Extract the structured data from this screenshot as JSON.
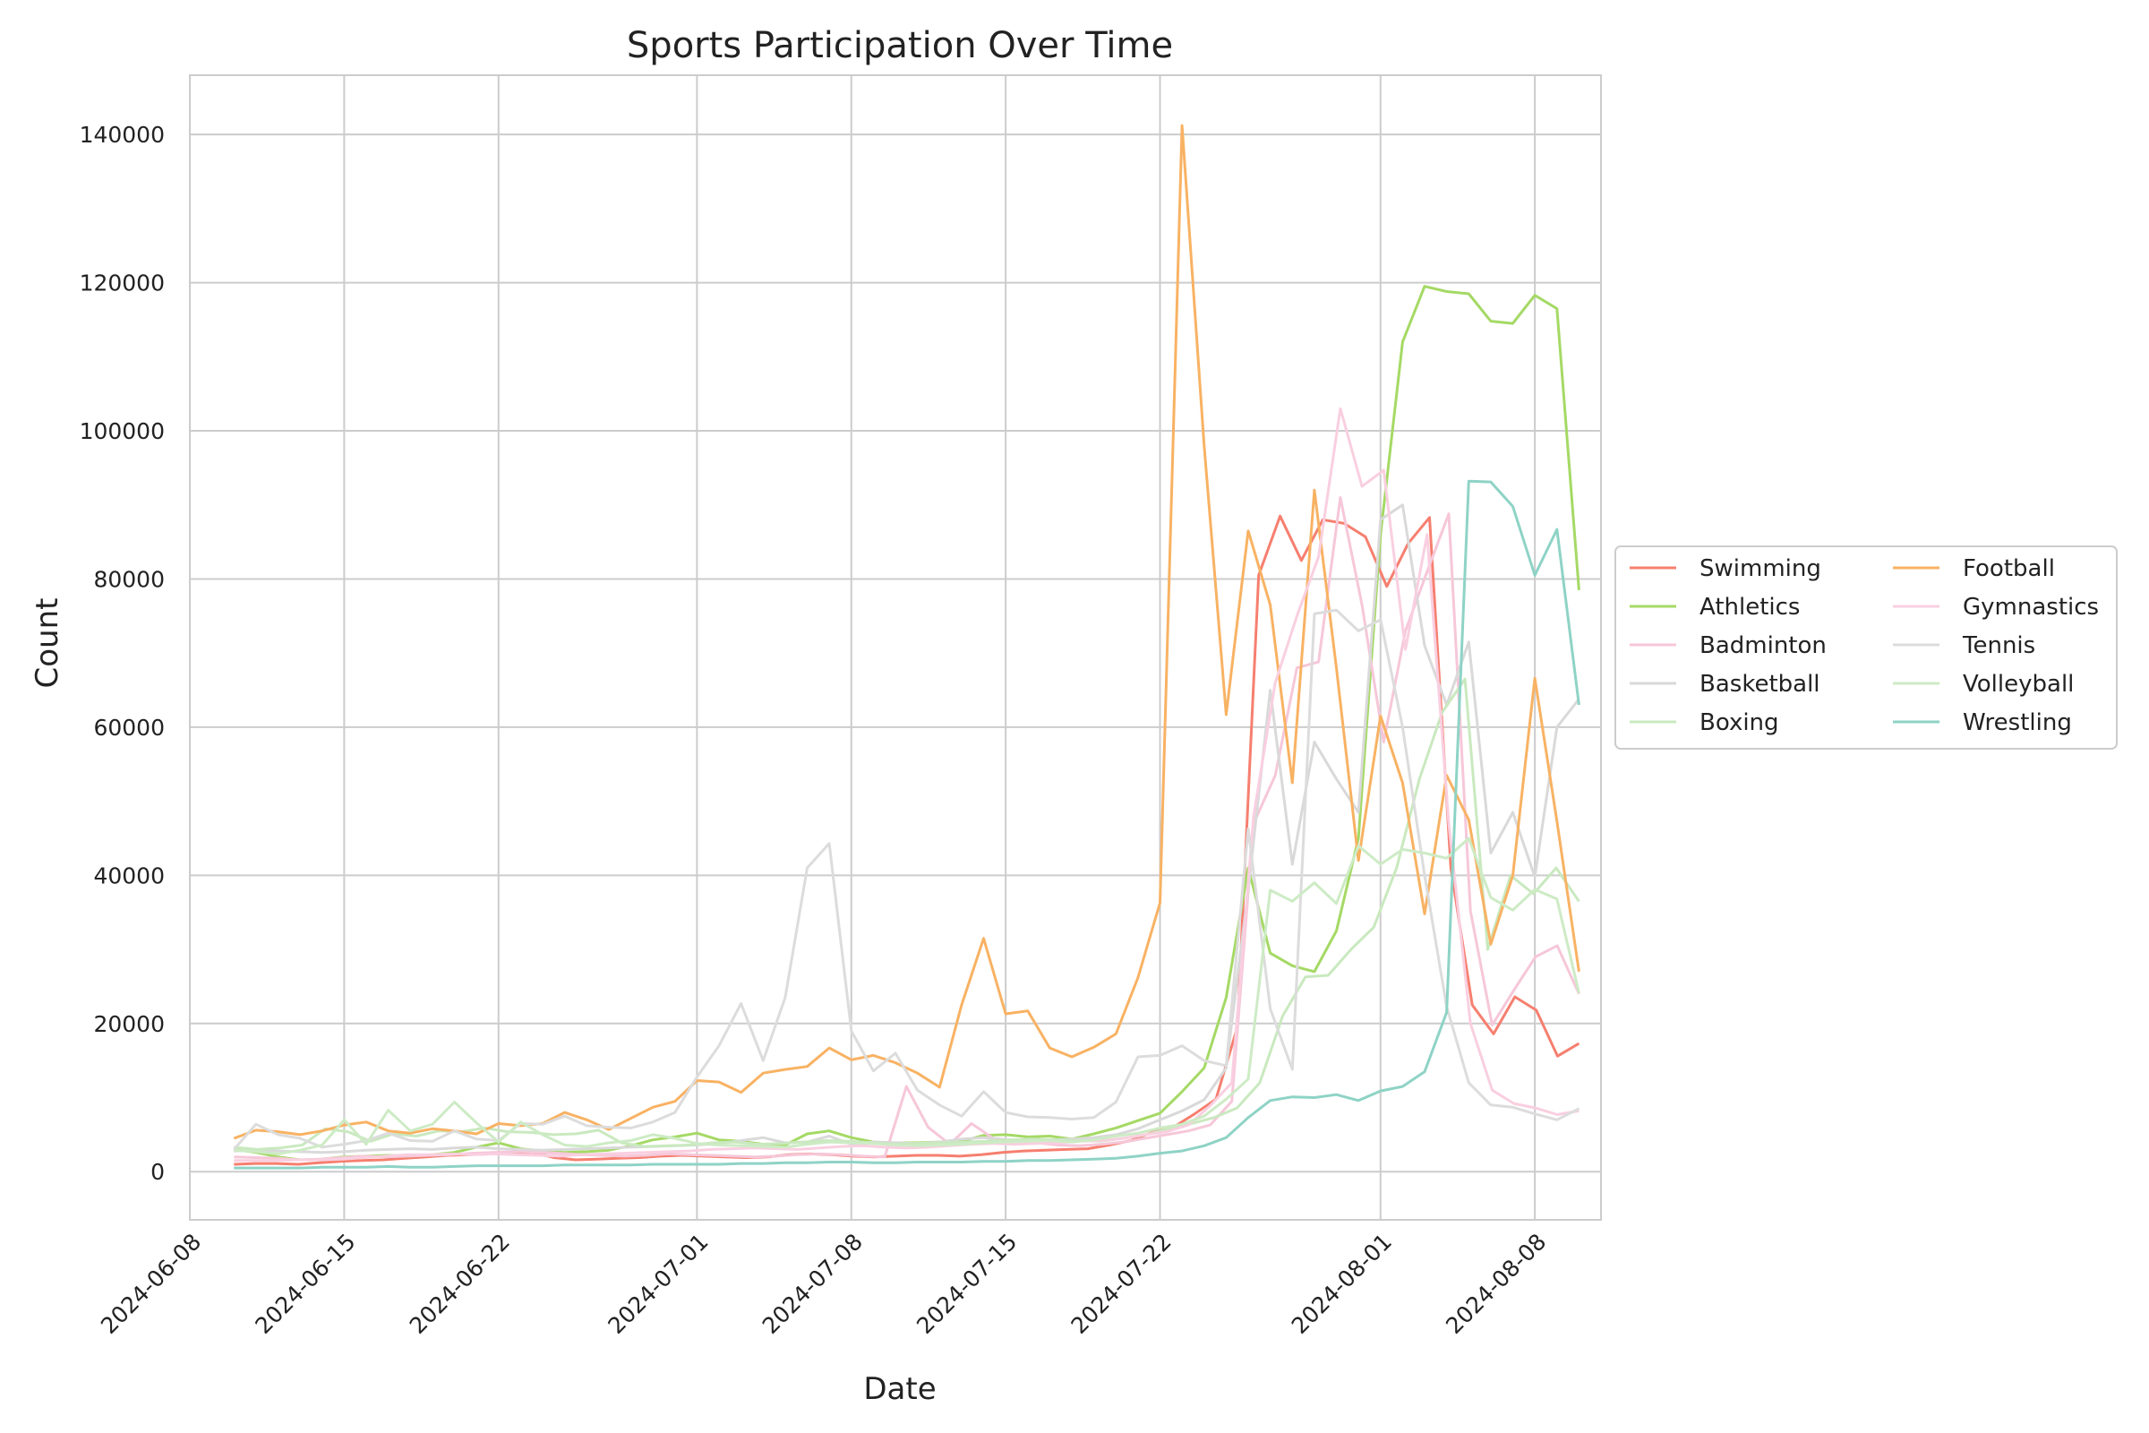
{
  "chart_data": {
    "type": "line",
    "title": "Sports Participation Over Time",
    "xlabel": "Date",
    "ylabel": "Count",
    "x_start": "2024-06-10",
    "x_end": "2024-08-10",
    "xlim": [
      "2024-06-08",
      "2024-08-11"
    ],
    "ylim": [
      -6500,
      148000
    ],
    "y_ticks": [
      0,
      20000,
      40000,
      60000,
      80000,
      100000,
      120000,
      140000
    ],
    "x_ticks": [
      "2024-06-08",
      "2024-06-15",
      "2024-06-22",
      "2024-07-01",
      "2024-07-08",
      "2024-07-15",
      "2024-07-22",
      "2024-08-01",
      "2024-08-08"
    ],
    "grid": true,
    "legend_position": "right",
    "series": [
      {
        "name": "Swimming",
        "color": "#f67f6f",
        "values": [
          1000,
          1100,
          1100,
          1000,
          1200,
          1400,
          1500,
          1600,
          1800,
          2000,
          2200,
          2300,
          2400,
          2500,
          2600,
          1900,
          1600,
          1700,
          1800,
          1900,
          2100,
          2200,
          2100,
          2000,
          1900,
          2000,
          2300,
          2400,
          2300,
          2100,
          2000,
          2100,
          2200,
          2200,
          2100,
          2300,
          2600,
          2800,
          2900,
          3000,
          3100,
          3600,
          4200,
          5300,
          6000,
          7800,
          9800,
          19500,
          80500,
          88500,
          82500,
          88000,
          87500,
          85700,
          79000,
          84800,
          88300,
          41000,
          22500,
          18600,
          23600,
          21800,
          15600,
          17300
        ]
      },
      {
        "name": "Athletics",
        "color": "#a5d965",
        "values": [
          3000,
          2600,
          2000,
          1600,
          1700,
          2000,
          2100,
          2200,
          2100,
          2300,
          2600,
          3300,
          3900,
          3100,
          2800,
          2600,
          2700,
          2900,
          3500,
          4300,
          4700,
          5200,
          4300,
          4100,
          3700,
          3600,
          5100,
          5500,
          4600,
          4000,
          3900,
          3900,
          4000,
          4100,
          4900,
          5000,
          4700,
          4800,
          4400,
          5100,
          5900,
          6900,
          7900,
          10800,
          14000,
          23500,
          41000,
          29500,
          27800,
          27000,
          32500,
          45000,
          86000,
          112000,
          119500,
          118800,
          118500,
          114800,
          114500,
          118300,
          116500,
          78500
        ]
      },
      {
        "name": "Badminton",
        "color": "#f6c7d9",
        "values": [
          2000,
          1900,
          1800,
          1600,
          1700,
          1900,
          2100,
          2000,
          2100,
          2200,
          2300,
          2500,
          2600,
          2700,
          2600,
          2500,
          2300,
          2200,
          2100,
          2200,
          2400,
          2300,
          2200,
          2100,
          2000,
          2100,
          2300,
          2400,
          2300,
          2100,
          2000,
          11500,
          6000,
          3700,
          6500,
          4500,
          4200,
          3900,
          3600,
          3500,
          3700,
          4000,
          4500,
          5000,
          5500,
          6300,
          9500,
          47000,
          53500,
          68000,
          68800,
          91000,
          76500,
          58000,
          73000,
          81000,
          88800,
          35200,
          19800,
          24500,
          29000,
          30500,
          24000
        ]
      },
      {
        "name": "Basketball",
        "color": "#d9d9d9",
        "values": [
          2800,
          2900,
          2800,
          2700,
          2600,
          2700,
          2900,
          3000,
          3100,
          3000,
          3200,
          3300,
          3100,
          3000,
          2900,
          3000,
          3100,
          3200,
          3300,
          3400,
          3500,
          3600,
          3800,
          4200,
          4600,
          3900,
          4000,
          4800,
          3700,
          4000,
          3900,
          3800,
          4000,
          4400,
          4600,
          4300,
          4200,
          4300,
          4400,
          4600,
          5000,
          5800,
          7000,
          8200,
          9700,
          14000,
          38000,
          65000,
          41500,
          58000,
          53000,
          48500,
          88000,
          90000,
          71000,
          63000,
          71500,
          43000,
          48500,
          39800,
          60000,
          63800
        ]
      },
      {
        "name": "Boxing",
        "color": "#c9e9bf",
        "values": [
          3300,
          3000,
          3200,
          3600,
          5800,
          5400,
          4100,
          5100,
          4800,
          5500,
          5400,
          5900,
          5400,
          5300,
          5000,
          5100,
          5600,
          3900,
          3400,
          3500,
          3600,
          3900,
          4000,
          3700,
          3800,
          4000,
          4200,
          4100,
          3900,
          3700,
          3800,
          3900,
          4000,
          4100,
          4300,
          4400,
          4300,
          4200,
          4100,
          4500,
          5000,
          5800,
          6500,
          7300,
          8600,
          12000,
          21000,
          26300,
          26500,
          30000,
          33000,
          41000,
          53000,
          62000,
          66500,
          30000,
          40000,
          37500,
          41000,
          36500
        ]
      },
      {
        "name": "Football",
        "color": "#f8b263",
        "values": [
          4500,
          5600,
          5400,
          5000,
          5500,
          6300,
          6700,
          5500,
          5200,
          5800,
          5500,
          5100,
          6500,
          6200,
          6500,
          8000,
          7000,
          5700,
          7200,
          8700,
          9500,
          12300,
          12100,
          10700,
          13300,
          13800,
          14200,
          16700,
          15100,
          15700,
          14700,
          13300,
          11400,
          22500,
          31500,
          21300,
          21700,
          16700,
          15500,
          16800,
          18600,
          26200,
          36300,
          141200,
          98000,
          61700,
          86500,
          76500,
          52500,
          92000,
          68000,
          42000,
          61500,
          52500,
          34800,
          53500,
          47500,
          30700,
          40000,
          66600,
          47300,
          27000
        ]
      },
      {
        "name": "Gymnastics",
        "color": "#f9cfe0",
        "values": [
          1500,
          1500,
          1500,
          1600,
          1600,
          1700,
          1900,
          2100,
          2300,
          2300,
          2400,
          2300,
          2400,
          2300,
          2200,
          2100,
          2300,
          2400,
          2500,
          2600,
          2700,
          2800,
          3000,
          3100,
          3200,
          3100,
          3000,
          3200,
          3400,
          3500,
          3300,
          3200,
          3300,
          3500,
          3700,
          3800,
          3700,
          3800,
          3900,
          4100,
          4200,
          4500,
          5000,
          5400,
          6300,
          8900,
          12000,
          48000,
          66000,
          75000,
          83000,
          103000,
          92500,
          94700,
          70500,
          86000,
          47000,
          20000,
          11000,
          9200,
          8600,
          7700,
          8200
        ]
      },
      {
        "name": "Tennis",
        "color": "#dcdcdc",
        "values": [
          3000,
          6400,
          5000,
          4500,
          3300,
          3700,
          4200,
          5200,
          4200,
          4100,
          5500,
          4400,
          4200,
          6500,
          6400,
          7500,
          6200,
          6000,
          5900,
          6700,
          8000,
          12800,
          17000,
          22700,
          15000,
          23500,
          41000,
          44300,
          19000,
          13600,
          16000,
          11000,
          9000,
          7500,
          10800,
          8000,
          7400,
          7300,
          7100,
          7300,
          9400,
          15500,
          15700,
          17000,
          15000,
          14300,
          46300,
          22000,
          13800,
          75300,
          75800,
          73000,
          74500,
          60000,
          40000,
          22300,
          12000,
          9000,
          8700,
          7800,
          7000,
          8500
        ]
      },
      {
        "name": "Volleyball",
        "color": "#cdebc5",
        "values": [
          2900,
          2700,
          2400,
          2900,
          3600,
          7000,
          3700,
          8300,
          5500,
          6400,
          9400,
          6600,
          4000,
          6700,
          5000,
          3600,
          3400,
          3900,
          4200,
          5000,
          4500,
          3800,
          3600,
          3500,
          3400,
          3300,
          3700,
          4000,
          3900,
          3800,
          3600,
          3500,
          3600,
          3700,
          3900,
          4000,
          4100,
          4200,
          4000,
          4300,
          4800,
          5200,
          5900,
          6400,
          7500,
          9800,
          12500,
          38000,
          36500,
          39000,
          36200,
          44000,
          41500,
          43500,
          43000,
          42300,
          45000,
          37000,
          35300,
          38100,
          36800,
          24100
        ]
      },
      {
        "name": "Wrestling",
        "color": "#8ed3c6",
        "values": [
          500,
          500,
          500,
          500,
          600,
          600,
          600,
          700,
          600,
          600,
          700,
          800,
          800,
          800,
          800,
          900,
          900,
          900,
          900,
          1000,
          1000,
          1000,
          1000,
          1100,
          1100,
          1200,
          1200,
          1300,
          1300,
          1200,
          1200,
          1300,
          1300,
          1300,
          1400,
          1400,
          1500,
          1500,
          1600,
          1700,
          1800,
          2100,
          2500,
          2800,
          3500,
          4600,
          7300,
          9600,
          10100,
          10000,
          10400,
          9600,
          10900,
          11500,
          13500,
          21500,
          93200,
          93100,
          89800,
          80500,
          86700,
          63000
        ]
      }
    ]
  }
}
